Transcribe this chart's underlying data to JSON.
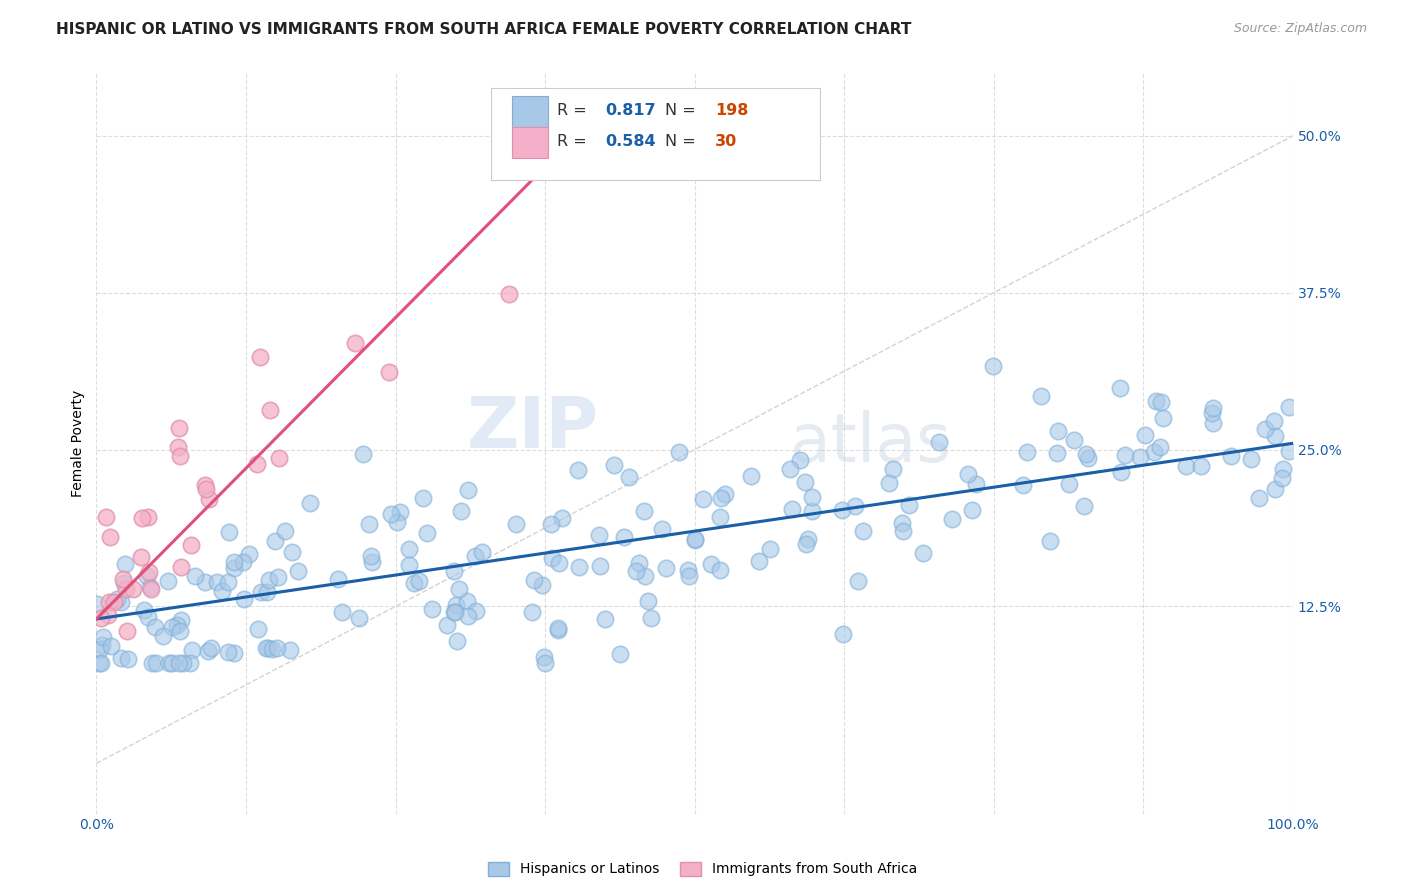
{
  "title": "HISPANIC OR LATINO VS IMMIGRANTS FROM SOUTH AFRICA FEMALE POVERTY CORRELATION CHART",
  "source": "Source: ZipAtlas.com",
  "ylabel": "Female Poverty",
  "watermark_zip": "ZIP",
  "watermark_atlas": "atlas",
  "blue_R": 0.817,
  "blue_N": 198,
  "pink_R": 0.584,
  "pink_N": 30,
  "blue_color": "#a8c8e8",
  "pink_color": "#f4b0c8",
  "blue_line_color": "#1a5fa8",
  "pink_line_color": "#e0507a",
  "diag_line_color": "#c8c8c8",
  "background_color": "#ffffff",
  "grid_color": "#dddddd",
  "xlim": [
    0.0,
    1.0
  ],
  "ylim": [
    -0.04,
    0.55
  ],
  "xticks": [
    0.0,
    0.125,
    0.25,
    0.375,
    0.5,
    0.625,
    0.75,
    0.875,
    1.0
  ],
  "xticklabels": [
    "0.0%",
    "",
    "",
    "",
    "",
    "",
    "",
    "",
    "100.0%"
  ],
  "yticks": [
    0.125,
    0.25,
    0.375,
    0.5
  ],
  "yticklabels": [
    "12.5%",
    "25.0%",
    "37.5%",
    "50.0%"
  ],
  "legend_labels": [
    "Hispanics or Latinos",
    "Immigrants from South Africa"
  ],
  "title_fontsize": 11,
  "label_fontsize": 10,
  "tick_fontsize": 10,
  "source_fontsize": 9,
  "blue_line_start_y": 0.115,
  "blue_line_end_y": 0.255,
  "pink_line_start_x": 0.0,
  "pink_line_start_y": 0.115,
  "pink_line_end_x": 0.38,
  "pink_line_end_y": 0.48
}
